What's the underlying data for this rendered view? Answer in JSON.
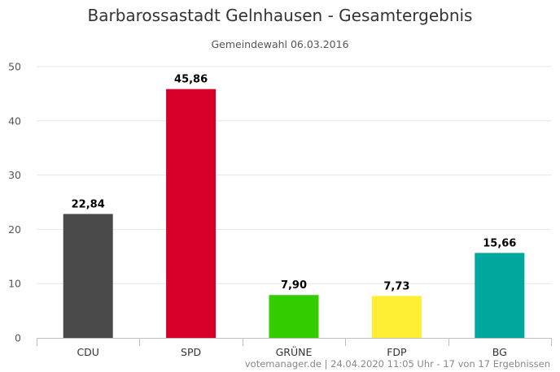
{
  "chart_data": {
    "type": "bar",
    "title": "Barbarossastadt Gelnhausen - Gesamtergebnis",
    "subtitle": "Gemeindewahl 06.03.2016",
    "categories": [
      "CDU",
      "SPD",
      "GRÜNE",
      "FDP",
      "BG"
    ],
    "values": [
      22.84,
      45.86,
      7.9,
      7.73,
      15.66
    ],
    "value_labels": [
      "22,84",
      "45,86",
      "7,90",
      "7,73",
      "15,66"
    ],
    "colors": [
      "#4a4a4a",
      "#d6002a",
      "#33cc00",
      "#ffee33",
      "#00a79d"
    ],
    "ylim": [
      0,
      50
    ],
    "yticks": [
      0,
      10,
      20,
      30,
      40,
      50
    ],
    "xlabel": "",
    "ylabel": "",
    "grid": true,
    "credits": "votemanager.de | 24.04.2020 11:05 Uhr - 17 von 17 Ergebnissen"
  }
}
